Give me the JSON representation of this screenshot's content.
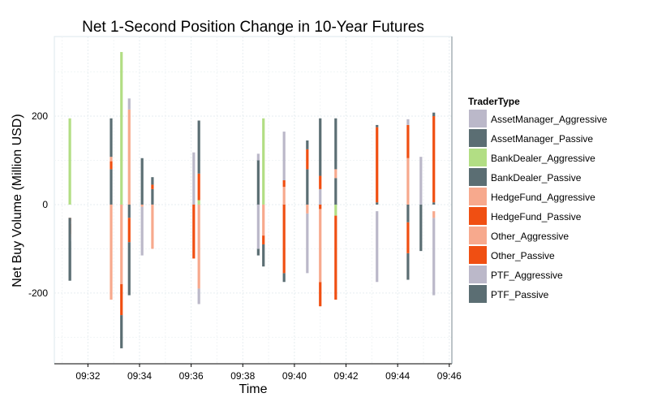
{
  "chart_data": {
    "type": "bar",
    "title": "Net 1-Second Position Change in 10-Year Futures",
    "xlabel": "Time",
    "ylabel": "Net Buy Volume (Million USD)",
    "x_ticks": [
      "09:32",
      "09:34",
      "09:36",
      "09:38",
      "09:40",
      "09:42",
      "09:44",
      "09:46"
    ],
    "x_tick_minutes": [
      32,
      34,
      36,
      38,
      40,
      42,
      44,
      46
    ],
    "xlim": [
      30.7,
      46.1
    ],
    "y_ticks": [
      -200,
      0,
      200
    ],
    "y_tick_labels": [
      "-200",
      "0",
      "200"
    ],
    "ylim": [
      -360,
      380
    ],
    "grid": true,
    "legend_position": "right",
    "legend_title": "TraderType",
    "series": [
      {
        "name": "AssetManager_Aggressive",
        "color": "#BBB8C9"
      },
      {
        "name": "AssetManager_Passive",
        "color": "#5B6E73"
      },
      {
        "name": "BankDealer_Aggressive",
        "color": "#B2DE84"
      },
      {
        "name": "BankDealer_Passive",
        "color": "#5B6E73"
      },
      {
        "name": "HedgeFund_Aggressive",
        "color": "#F7A98D"
      },
      {
        "name": "HedgeFund_Passive",
        "color": "#F04F12"
      },
      {
        "name": "Other_Aggressive",
        "color": "#F7A98D"
      },
      {
        "name": "Other_Passive",
        "color": "#F04F12"
      },
      {
        "name": "PTF_Aggressive",
        "color": "#BBB8C9"
      },
      {
        "name": "PTF_Passive",
        "color": "#5B6E73"
      }
    ],
    "bars": [
      {
        "t": 31.3,
        "segs": [
          [
            -83,
            -75,
            "#BBB8C9"
          ],
          [
            -75,
            -66,
            "#F7A98D"
          ],
          [
            -66,
            -44,
            "#F04F12"
          ],
          [
            -44,
            -37,
            "#F7A98D"
          ],
          [
            -37,
            -30,
            "#F04F12"
          ],
          [
            -30,
            -172,
            "#5B6E73"
          ],
          [
            0,
            195,
            "#B2DE84"
          ],
          [
            -172,
            -83,
            "#5B6E73"
          ]
        ]
      },
      {
        "t": 32.9,
        "segs": [
          [
            0,
            80,
            "#5B6E73"
          ],
          [
            80,
            98,
            "#F04F12"
          ],
          [
            98,
            108,
            "#F7A98D"
          ],
          [
            108,
            195,
            "#5B6E73"
          ],
          [
            -215,
            0,
            "#F7A98D"
          ]
        ]
      },
      {
        "t": 33.3,
        "segs": [
          [
            0,
            345,
            "#B2DE84"
          ],
          [
            -180,
            0,
            "#F7A98D"
          ],
          [
            -250,
            -180,
            "#F04F12"
          ],
          [
            -325,
            -250,
            "#5B6E73"
          ]
        ]
      },
      {
        "t": 33.6,
        "segs": [
          [
            0,
            215,
            "#F7A98D"
          ],
          [
            215,
            240,
            "#BBB8C9"
          ],
          [
            -30,
            0,
            "#5B6E73"
          ],
          [
            -85,
            -30,
            "#F04F12"
          ],
          [
            -205,
            -85,
            "#5B6E73"
          ]
        ]
      },
      {
        "t": 34.1,
        "segs": [
          [
            -5,
            0,
            "#F7A98D"
          ],
          [
            -115,
            -5,
            "#BBB8C9"
          ],
          [
            0,
            105,
            "#5B6E73"
          ]
        ]
      },
      {
        "t": 34.5,
        "segs": [
          [
            0,
            35,
            "#5B6E73"
          ],
          [
            35,
            45,
            "#F04F12"
          ],
          [
            45,
            62,
            "#5B6E73"
          ],
          [
            -100,
            0,
            "#F7A98D"
          ]
        ]
      },
      {
        "t": 36.1,
        "segs": [
          [
            0,
            118,
            "#BBB8C9"
          ],
          [
            -122,
            0,
            "#F04F12"
          ]
        ]
      },
      {
        "t": 36.3,
        "segs": [
          [
            0,
            10,
            "#B2DE84"
          ],
          [
            10,
            70,
            "#F04F12"
          ],
          [
            70,
            190,
            "#5B6E73"
          ],
          [
            -190,
            0,
            "#F7A98D"
          ],
          [
            -225,
            -190,
            "#BBB8C9"
          ]
        ]
      },
      {
        "t": 38.6,
        "segs": [
          [
            0,
            100,
            "#5B6E73"
          ],
          [
            100,
            115,
            "#BBB8C9"
          ],
          [
            -115,
            -100,
            "#5B6E73"
          ],
          [
            -100,
            0,
            "#BBB8C9"
          ]
        ]
      },
      {
        "t": 38.8,
        "segs": [
          [
            0,
            195,
            "#B2DE84"
          ],
          [
            -140,
            -90,
            "#5B6E73"
          ],
          [
            -90,
            -70,
            "#F04F12"
          ],
          [
            -70,
            0,
            "#F7A98D"
          ]
        ]
      },
      {
        "t": 39.6,
        "segs": [
          [
            -175,
            -155,
            "#5B6E73"
          ],
          [
            -155,
            0,
            "#F04F12"
          ],
          [
            0,
            40,
            "#F7A98D"
          ],
          [
            40,
            55,
            "#F04F12"
          ],
          [
            55,
            165,
            "#BBB8C9"
          ]
        ]
      },
      {
        "t": 40.5,
        "segs": [
          [
            -155,
            -20,
            "#BBB8C9"
          ],
          [
            -20,
            0,
            "#F7A98D"
          ],
          [
            0,
            80,
            "#5B6E73"
          ],
          [
            80,
            125,
            "#F04F12"
          ],
          [
            125,
            145,
            "#5B6E73"
          ]
        ]
      },
      {
        "t": 41.0,
        "segs": [
          [
            -230,
            -175,
            "#F04F12"
          ],
          [
            -175,
            -10,
            "#F7A98D"
          ],
          [
            -10,
            0,
            "#F04F12"
          ],
          [
            0,
            35,
            "#BBB8C9"
          ],
          [
            35,
            65,
            "#F04F12"
          ],
          [
            65,
            195,
            "#5B6E73"
          ]
        ]
      },
      {
        "t": 41.6,
        "segs": [
          [
            -215,
            -25,
            "#F04F12"
          ],
          [
            -25,
            0,
            "#B2DE84"
          ],
          [
            0,
            60,
            "#5B6E73"
          ],
          [
            60,
            80,
            "#F7A98D"
          ],
          [
            80,
            195,
            "#5B6E73"
          ]
        ]
      },
      {
        "t": 43.2,
        "segs": [
          [
            -175,
            -15,
            "#BBB8C9"
          ],
          [
            0,
            5,
            "#5B6E73"
          ],
          [
            5,
            175,
            "#F04F12"
          ],
          [
            175,
            180,
            "#5B6E73"
          ]
        ]
      },
      {
        "t": 44.4,
        "segs": [
          [
            -170,
            -110,
            "#5B6E73"
          ],
          [
            -110,
            -40,
            "#F04F12"
          ],
          [
            -40,
            0,
            "#5B6E73"
          ],
          [
            0,
            105,
            "#F7A98D"
          ],
          [
            105,
            180,
            "#F04F12"
          ],
          [
            180,
            193,
            "#BBB8C9"
          ]
        ]
      },
      {
        "t": 44.9,
        "segs": [
          [
            -105,
            0,
            "#5B6E73"
          ],
          [
            0,
            108,
            "#BBB8C9"
          ]
        ]
      },
      {
        "t": 45.4,
        "segs": [
          [
            -205,
            -30,
            "#BBB8C9"
          ],
          [
            -30,
            -15,
            "#F7A98D"
          ],
          [
            0,
            5,
            "#5B6E73"
          ],
          [
            5,
            200,
            "#F04F12"
          ],
          [
            200,
            208,
            "#5B6E73"
          ]
        ]
      }
    ]
  }
}
